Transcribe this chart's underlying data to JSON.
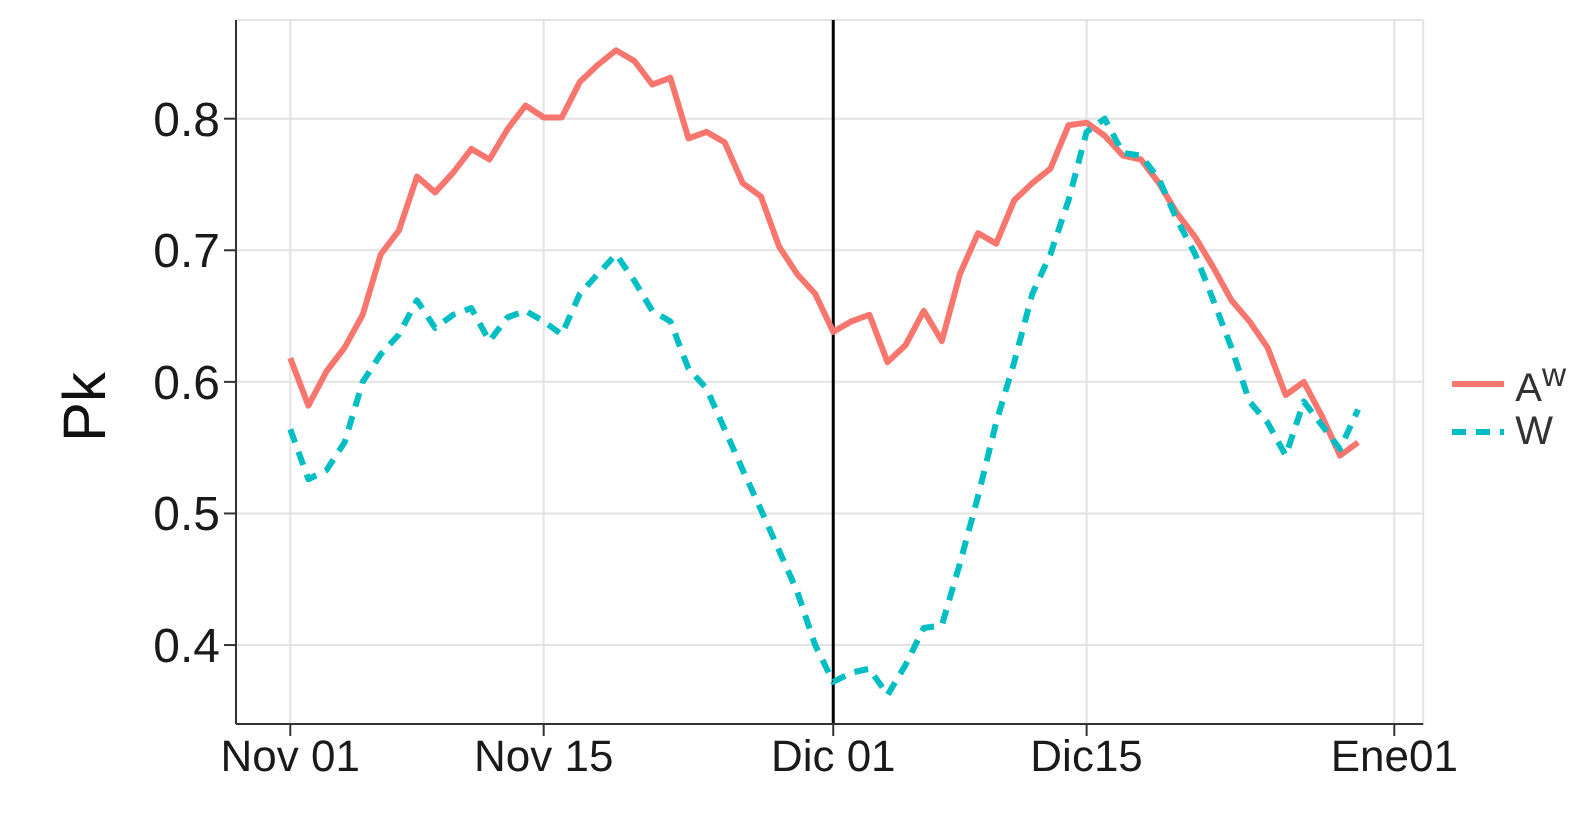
{
  "chart_data": {
    "type": "line",
    "ylabel": "Pk",
    "categories": [
      "Nov 01",
      null,
      null,
      null,
      null,
      null,
      null,
      null,
      null,
      null,
      null,
      null,
      null,
      null,
      "Nov 15",
      null,
      null,
      null,
      null,
      null,
      null,
      null,
      null,
      null,
      null,
      null,
      null,
      null,
      null,
      null,
      "Dic 01",
      null,
      null,
      null,
      null,
      null,
      null,
      null,
      null,
      null,
      null,
      null,
      null,
      null,
      "Dic15",
      null,
      null,
      null,
      null,
      null,
      null,
      null,
      null,
      null,
      null,
      null,
      null,
      null,
      null,
      null,
      null,
      "Ene01"
    ],
    "ylim": [
      0.34,
      0.875
    ],
    "yticks": [
      0.4,
      0.5,
      0.6,
      0.7,
      0.8
    ],
    "grid": true,
    "legend": "right",
    "ref_lines": [
      {
        "axis": "x",
        "value": "Dic 01",
        "color": "#000000"
      }
    ],
    "series": [
      {
        "name": "A$^{w}$",
        "color": "#f8766d",
        "line_style": "solid",
        "values": [
          0.618,
          0.582,
          0.608,
          0.626,
          0.651,
          0.697,
          0.715,
          0.756,
          0.744,
          0.759,
          0.777,
          0.769,
          0.792,
          0.81,
          0.801,
          0.801,
          0.828,
          0.841,
          0.852,
          0.844,
          0.826,
          0.831,
          0.785,
          0.79,
          0.782,
          0.751,
          0.741,
          0.703,
          0.682,
          0.667,
          0.638,
          0.646,
          0.651,
          0.615,
          0.628,
          0.654,
          0.631,
          0.682,
          0.713,
          0.705,
          0.738,
          0.751,
          0.762,
          0.795,
          0.797,
          0.787,
          0.772,
          0.769,
          0.751,
          0.728,
          0.71,
          0.687,
          0.662,
          0.646,
          0.626,
          0.59,
          0.6,
          0.574,
          0.544,
          0.554,
          null,
          null
        ]
      },
      {
        "name": "W",
        "color": "#00bfc4",
        "line_style": "dashed",
        "values": [
          0.564,
          0.526,
          0.533,
          0.554,
          0.6,
          0.621,
          0.636,
          0.662,
          0.641,
          0.651,
          0.656,
          0.631,
          0.649,
          0.654,
          0.646,
          0.636,
          0.667,
          0.682,
          0.697,
          0.677,
          0.654,
          0.646,
          0.61,
          0.595,
          0.564,
          0.533,
          0.503,
          0.472,
          0.441,
          0.4,
          0.372,
          0.379,
          0.382,
          0.362,
          0.385,
          0.413,
          0.415,
          0.462,
          0.513,
          0.569,
          0.615,
          0.667,
          0.697,
          0.738,
          0.79,
          0.8,
          0.774,
          0.772,
          0.754,
          0.723,
          0.697,
          0.662,
          0.626,
          0.585,
          0.569,
          0.544,
          0.585,
          0.567,
          0.549,
          0.579,
          null,
          null
        ]
      }
    ]
  }
}
